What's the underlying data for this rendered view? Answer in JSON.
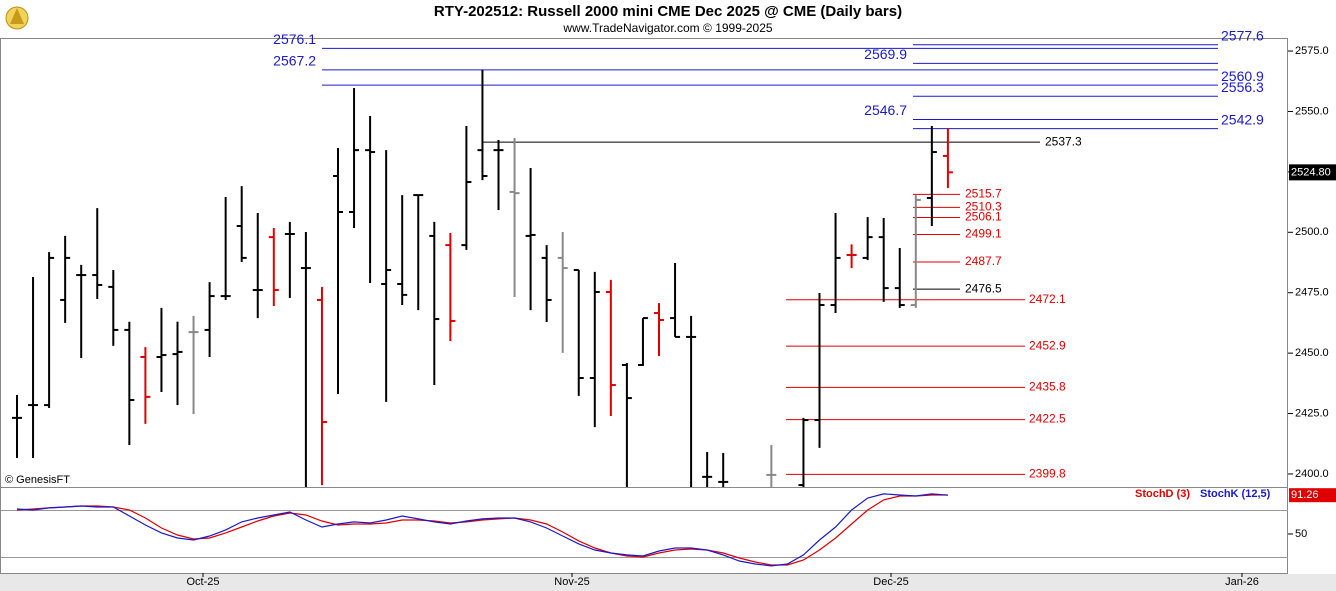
{
  "chart_data": {
    "type": "ohlc",
    "title": "RTY-202512:  Russell 2000 mini CME Dec 2025 @ CME  (Daily bars)",
    "subtitle": "www.TradeNavigator.com © 1999-2025",
    "source": "© GenesisFT",
    "xtick_labels": [
      "Oct-25",
      "Nov-25",
      "Dec-25",
      "Jan-26"
    ],
    "ylim": [
      2394.6,
      2580.4
    ],
    "yticks": [
      {
        "value": 2400,
        "label": "2400.0"
      },
      {
        "value": 2425,
        "label": "2425.0"
      },
      {
        "value": 2450,
        "label": "2450.0"
      },
      {
        "value": 2475,
        "label": "2475.0"
      },
      {
        "value": 2500,
        "label": "2500.0"
      },
      {
        "value": 2525,
        "label": "2525.0"
      },
      {
        "value": 2550,
        "label": "2550.0"
      },
      {
        "value": 2575,
        "label": "2575.0"
      }
    ],
    "last_price": {
      "value": 2524.8,
      "label": "2524.80"
    },
    "bars": [
      {
        "o": 2423.2,
        "h": 2432.7,
        "l": 2406.6,
        "c": 2423.2,
        "color": "#000000"
      },
      {
        "o": 2428.5,
        "h": 2481.5,
        "l": 2406.6,
        "c": 2428.5,
        "color": "#000000"
      },
      {
        "o": 2428.5,
        "h": 2491.8,
        "l": 2427.3,
        "c": 2489.4,
        "color": "#000000"
      },
      {
        "o": 2472.0,
        "h": 2498.5,
        "l": 2462.5,
        "c": 2489.4,
        "color": "#000000"
      },
      {
        "o": 2482.3,
        "h": 2486.5,
        "l": 2448.0,
        "c": 2482.3,
        "color": "#000000"
      },
      {
        "o": 2482.3,
        "h": 2510.0,
        "l": 2472.4,
        "c": 2478.2,
        "color": "#000000"
      },
      {
        "o": 2477.4,
        "h": 2484.4,
        "l": 2453.0,
        "c": 2459.6,
        "color": "#000000"
      },
      {
        "o": 2459.6,
        "h": 2463.0,
        "l": 2412.0,
        "c": 2430.6,
        "color": "#000000"
      },
      {
        "o": 2448.4,
        "h": 2452.5,
        "l": 2420.7,
        "c": 2431.9,
        "color": "#e00000"
      },
      {
        "o": 2448.4,
        "h": 2468.7,
        "l": 2433.9,
        "c": 2449.2,
        "color": "#000000"
      },
      {
        "o": 2449.6,
        "h": 2463.0,
        "l": 2428.5,
        "c": 2450.5,
        "color": "#000000"
      },
      {
        "o": 2458.7,
        "h": 2465.4,
        "l": 2424.8,
        "c": 2458.7,
        "color": "#888888"
      },
      {
        "o": 2459.6,
        "h": 2479.4,
        "l": 2448.4,
        "c": 2473.6,
        "color": "#000000"
      },
      {
        "o": 2473.6,
        "h": 2514.6,
        "l": 2472.0,
        "c": 2473.6,
        "color": "#000000"
      },
      {
        "o": 2502.6,
        "h": 2519.1,
        "l": 2487.7,
        "c": 2489.4,
        "color": "#000000"
      },
      {
        "o": 2476.1,
        "h": 2508.0,
        "l": 2464.5,
        "c": 2476.1,
        "color": "#000000"
      },
      {
        "o": 2498.0,
        "h": 2501.8,
        "l": 2469.5,
        "c": 2476.1,
        "color": "#e00000"
      },
      {
        "o": 2499.3,
        "h": 2504.3,
        "l": 2472.8,
        "c": 2499.3,
        "color": "#000000"
      },
      {
        "o": 2485.2,
        "h": 2500.1,
        "l": 2390.0,
        "c": 2485.2,
        "color": "#000000"
      },
      {
        "o": 2472.0,
        "h": 2477.4,
        "l": 2395.4,
        "c": 2421.5,
        "color": "#e00000"
      },
      {
        "o": 2523.3,
        "h": 2534.9,
        "l": 2433.1,
        "c": 2508.4,
        "color": "#000000"
      },
      {
        "o": 2508.4,
        "h": 2559.7,
        "l": 2501.8,
        "c": 2534.0,
        "color": "#000000"
      },
      {
        "o": 2534.0,
        "h": 2548.1,
        "l": 2479.0,
        "c": 2533.2,
        "color": "#000000"
      },
      {
        "o": 2478.6,
        "h": 2534.0,
        "l": 2429.8,
        "c": 2484.4,
        "color": "#000000"
      },
      {
        "o": 2478.6,
        "h": 2515.4,
        "l": 2469.9,
        "c": 2474.1,
        "color": "#000000"
      },
      {
        "o": 2515.4,
        "h": 2515.4,
        "l": 2467.8,
        "c": 2515.4,
        "color": "#000000"
      },
      {
        "o": 2498.5,
        "h": 2504.3,
        "l": 2436.8,
        "c": 2464.1,
        "color": "#000000"
      },
      {
        "o": 2494.7,
        "h": 2499.7,
        "l": 2455.0,
        "c": 2463.3,
        "color": "#e00000"
      },
      {
        "o": 2494.7,
        "h": 2544.0,
        "l": 2492.7,
        "c": 2520.8,
        "color": "#000000"
      },
      {
        "o": 2534.0,
        "h": 2567.2,
        "l": 2521.6,
        "c": 2523.3,
        "color": "#000000"
      },
      {
        "o": 2534.0,
        "h": 2538.2,
        "l": 2509.2,
        "c": 2534.0,
        "color": "#000000"
      },
      {
        "o": 2516.7,
        "h": 2539.0,
        "l": 2473.2,
        "c": 2516.2,
        "color": "#888888"
      },
      {
        "o": 2498.5,
        "h": 2526.6,
        "l": 2467.8,
        "c": 2498.9,
        "color": "#000000"
      },
      {
        "o": 2489.4,
        "h": 2494.7,
        "l": 2462.9,
        "c": 2472.0,
        "color": "#000000"
      },
      {
        "o": 2489.4,
        "h": 2500.1,
        "l": 2450.1,
        "c": 2485.2,
        "color": "#888888"
      },
      {
        "o": 2484.4,
        "h": 2484.4,
        "l": 2432.3,
        "c": 2439.7,
        "color": "#000000"
      },
      {
        "o": 2439.7,
        "h": 2483.6,
        "l": 2419.4,
        "c": 2475.3,
        "color": "#000000"
      },
      {
        "o": 2475.3,
        "h": 2480.3,
        "l": 2424.0,
        "c": 2436.8,
        "color": "#e00000"
      },
      {
        "o": 2445.1,
        "h": 2445.9,
        "l": 2390.0,
        "c": 2431.4,
        "color": "#000000"
      },
      {
        "o": 2445.1,
        "h": 2464.5,
        "l": 2444.7,
        "c": 2464.5,
        "color": "#000000"
      },
      {
        "o": 2466.6,
        "h": 2470.7,
        "l": 2448.8,
        "c": 2463.7,
        "color": "#e00000"
      },
      {
        "o": 2464.5,
        "h": 2487.3,
        "l": 2456.7,
        "c": 2456.7,
        "color": "#000000"
      },
      {
        "o": 2456.7,
        "h": 2465.4,
        "l": 2388.0,
        "c": 2456.7,
        "color": "#000000"
      },
      {
        "o": 2398.8,
        "h": 2409.1,
        "l": 2390.0,
        "c": 2398.8,
        "color": "#000000"
      },
      {
        "o": 2396.7,
        "h": 2408.7,
        "l": 2390.0,
        "c": 2396.7,
        "color": "#000000"
      },
      null,
      null,
      {
        "o": 2399.6,
        "h": 2412.0,
        "l": 2392.0,
        "c": 2399.6,
        "color": "#888888"
      },
      null,
      {
        "o": 2395.4,
        "h": 2423.2,
        "l": 2392.0,
        "c": 2422.3,
        "color": "#000000"
      },
      {
        "o": 2422.3,
        "h": 2474.9,
        "l": 2410.8,
        "c": 2469.9,
        "color": "#000000"
      },
      {
        "o": 2469.9,
        "h": 2508.0,
        "l": 2466.6,
        "c": 2489.4,
        "color": "#000000"
      },
      {
        "o": 2490.6,
        "h": 2495.0,
        "l": 2485.2,
        "c": 2490.6,
        "color": "#e00000"
      },
      {
        "o": 2489.4,
        "h": 2506.3,
        "l": 2488.5,
        "c": 2498.0,
        "color": "#000000"
      },
      {
        "o": 2498.0,
        "h": 2505.9,
        "l": 2471.2,
        "c": 2476.9,
        "color": "#000000"
      },
      {
        "o": 2476.9,
        "h": 2493.5,
        "l": 2468.7,
        "c": 2469.9,
        "color": "#000000"
      },
      {
        "o": 2469.9,
        "h": 2515.4,
        "l": 2468.7,
        "c": 2513.4,
        "color": "#888888"
      },
      {
        "o": 2514.2,
        "h": 2544.0,
        "l": 2502.6,
        "c": 2533.2,
        "color": "#000000"
      },
      {
        "o": 2531.6,
        "h": 2543.1,
        "l": 2518.3,
        "c": 2524.8,
        "color": "#e00000"
      }
    ],
    "levels": [
      {
        "color": "#1a1acc",
        "values": [
          2576.1,
          2577.6,
          2567.2,
          2569.9,
          2560.9,
          2556.3,
          2546.7,
          2542.9
        ]
      },
      {
        "color": "#e00000",
        "values": [
          2515.7,
          2510.3,
          2506.1,
          2499.1,
          2487.7,
          2472.1,
          2452.9,
          2435.8,
          2422.5,
          2399.8
        ]
      },
      {
        "color": "#000000",
        "values": [
          2537.3,
          2476.5
        ]
      }
    ],
    "stochastic": {
      "ylim": [
        8.5,
        98.9
      ],
      "yticks": [
        50
      ],
      "levels": [
        75,
        25
      ],
      "last_value": 91.26,
      "series": [
        {
          "name": "StochD (3)",
          "color": "#e00000",
          "values": [
            75.5,
            76.6,
            77.7,
            78.7,
            79.8,
            79.8,
            78.7,
            75.5,
            67.0,
            56.4,
            48.9,
            44.7,
            45.7,
            51.1,
            57.4,
            63.8,
            69.1,
            72.3,
            70.2,
            63.8,
            59.6,
            60.6,
            60.6,
            61.7,
            64.9,
            64.9,
            63.8,
            61.7,
            62.8,
            64.9,
            66.0,
            67.0,
            64.9,
            60.6,
            52.1,
            42.6,
            35.1,
            29.8,
            26.6,
            25.5,
            29.8,
            33.0,
            34.0,
            33.0,
            29.8,
            24.5,
            20.2,
            17.0,
            17.0,
            22.3,
            33.0,
            45.7,
            60.6,
            75.5,
            86.2,
            90.4,
            90.4,
            91.5,
            91.5
          ]
        },
        {
          "name": "StochK (12,5)",
          "color": "#1a1acc",
          "values": [
            76.6,
            75.5,
            77.7,
            78.7,
            79.8,
            78.7,
            78.7,
            69.1,
            59.6,
            51.1,
            45.7,
            43.6,
            47.9,
            54.3,
            62.8,
            67.0,
            70.2,
            73.4,
            64.9,
            57.4,
            60.6,
            62.8,
            61.7,
            64.9,
            69.1,
            66.0,
            62.8,
            60.6,
            63.8,
            66.0,
            67.0,
            67.0,
            62.8,
            56.4,
            47.9,
            39.4,
            33.0,
            29.8,
            27.7,
            26.6,
            31.9,
            35.1,
            35.1,
            33.0,
            27.7,
            21.3,
            18.1,
            16.0,
            18.1,
            27.7,
            43.6,
            57.4,
            75.5,
            88.3,
            92.6,
            91.5,
            90.4,
            92.6,
            91.26
          ]
        }
      ]
    }
  }
}
